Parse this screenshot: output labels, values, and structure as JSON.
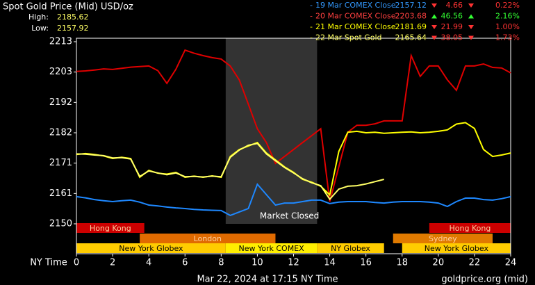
{
  "chart_data": {
    "type": "line",
    "title": "Spot Gold Price (Mid) USD/oz",
    "high_label": "High:",
    "high": "2185.62",
    "low_label": "Low:",
    "low": "2157.92",
    "x_label": "NY Time",
    "timestamp": "Mar 22, 2024 at 17:15 NY Time",
    "source": "goldprice.org (mid)",
    "closed_label": "Market Closed",
    "closed_range": [
      8.25,
      13.3
    ],
    "x": [
      0,
      0.5,
      1,
      1.5,
      2,
      2.5,
      3,
      3.5,
      4,
      4.5,
      5,
      5.5,
      6,
      6.5,
      7,
      7.5,
      8,
      8.5,
      9,
      9.5,
      10,
      10.5,
      11,
      11.5,
      12,
      12.5,
      13,
      13.5,
      14,
      14.5,
      15,
      15.5,
      16,
      16.5,
      17,
      17.5,
      18,
      18.5,
      19,
      19.5,
      20,
      20.5,
      21,
      21.5,
      22,
      22.5,
      23,
      23.5,
      24
    ],
    "xlim": [
      0,
      24
    ],
    "xticks": [
      0,
      2,
      4,
      6,
      8,
      10,
      12,
      14,
      16,
      18,
      20,
      22,
      24
    ],
    "ylim": [
      2150,
      2214.2
    ],
    "yticks": [
      2150,
      {
        "value": 2160.5,
        "label": "2161"
      },
      2171,
      {
        "value": 2181.5,
        "label": "2182"
      },
      2192,
      {
        "value": 2202.5,
        "label": "2203"
      },
      2213
    ],
    "series": [
      {
        "name": "19 Mar COMEX Close",
        "color": "#1e88ff",
        "last": "2157.12",
        "change": "4.66",
        "pct": "0.22%",
        "trend": "down",
        "values": [
          2159.4,
          2159.0,
          2158.4,
          2158.0,
          2157.7,
          2158.0,
          2158.2,
          2157.5,
          2156.5,
          2156.2,
          2155.8,
          2155.5,
          2155.3,
          2155.0,
          2154.8,
          2154.7,
          2154.6,
          2152.9,
          2154.1,
          2155.3,
          2163.7,
          2160.1,
          2156.5,
          2157.2,
          2157.2,
          2157.7,
          2158.2,
          2158.2,
          2157.0,
          2157.5,
          2157.7,
          2157.7,
          2157.7,
          2157.4,
          2157.2,
          2157.5,
          2157.7,
          2157.7,
          2157.7,
          2157.5,
          2157.2,
          2156.0,
          2157.7,
          2158.9,
          2158.9,
          2158.4,
          2158.2,
          2158.7,
          2159.4
        ]
      },
      {
        "name": "20 Mar COMEX Close",
        "color": "#e00000",
        "last": "2203.68",
        "change": "46.56",
        "pct": "2.16%",
        "trend": "up",
        "values": [
          2202.7,
          2202.9,
          2203.2,
          2203.6,
          2203.4,
          2203.8,
          2204.2,
          2204.4,
          2204.6,
          2203.0,
          2198.6,
          2203.5,
          2210.1,
          2209.0,
          2208.2,
          2207.5,
          2207.0,
          2204.6,
          2199.8,
          2191.4,
          2182.9,
          2178.1,
          2170.9,
          2173.3,
          2175.7,
          2178.1,
          2180.5,
          2182.9,
          2157.7,
          2169.7,
          2181.7,
          2184.1,
          2184.1,
          2184.6,
          2185.6,
          2185.6,
          2185.6,
          2208.2,
          2201.0,
          2204.6,
          2204.6,
          2199.8,
          2196.2,
          2204.6,
          2204.6,
          2205.3,
          2204.1,
          2203.9,
          2202.2
        ]
      },
      {
        "name": "21 Mar COMEX Close",
        "color": "#ffff00",
        "last": "2181.69",
        "change": "21.99",
        "pct": "1.00%",
        "trend": "down",
        "values": [
          2174.0,
          2174.3,
          2174.0,
          2173.5,
          2172.6,
          2173.0,
          2172.6,
          2166.1,
          2168.5,
          2167.5,
          2167.2,
          2167.8,
          2166.1,
          2166.5,
          2166.1,
          2166.6,
          2166.1,
          2173.3,
          2175.7,
          2176.9,
          2178.1,
          2174.5,
          2172.1,
          2169.7,
          2167.8,
          2165.4,
          2164.4,
          2163.0,
          2160.0,
          2175.0,
          2181.7,
          2182.0,
          2181.5,
          2181.7,
          2181.3,
          2181.5,
          2181.7,
          2181.8,
          2181.5,
          2181.7,
          2182.0,
          2182.5,
          2184.5,
          2185.0,
          2183.0,
          2175.7,
          2173.3,
          2173.8,
          2174.5
        ]
      },
      {
        "name": "22 Mar Spot Gold",
        "color": "#ffff66",
        "last": "2165.64",
        "change": "38.05",
        "pct": "1.73%",
        "trend": "down",
        "values": [
          2174.2,
          2174.1,
          2173.8,
          2173.6,
          2172.8,
          2172.9,
          2172.4,
          2166.4,
          2168.3,
          2167.6,
          2167.0,
          2167.6,
          2166.3,
          2166.4,
          2166.2,
          2166.5,
          2166.3,
          2173.0,
          2175.5,
          2177.2,
          2177.8,
          2174.2,
          2171.8,
          2169.5,
          2167.6,
          2165.6,
          2164.2,
          2163.2,
          2158.5,
          2162.0,
          2163.0,
          2163.2,
          2163.8,
          2164.6,
          2165.4,
          null,
          null,
          null,
          null,
          null,
          null,
          null,
          null,
          null,
          null,
          null,
          null,
          null,
          null
        ]
      }
    ],
    "sessions": [
      {
        "name": "Hong Kong",
        "start": 0,
        "end": 3.75,
        "row": 0,
        "color": "#cc0000"
      },
      {
        "name": "Hong Kong",
        "start": 19.5,
        "end": 24,
        "row": 0,
        "color": "#cc0000"
      },
      {
        "name": "London",
        "start": 3.5,
        "end": 11,
        "row": 1,
        "color": "#e06a00"
      },
      {
        "name": "Sydney",
        "start": 17.5,
        "end": 23,
        "row": 1,
        "color": "#e07a00"
      },
      {
        "name": "New York Globex",
        "start": 0,
        "end": 8.25,
        "row": 2,
        "color": "#ffcc00"
      },
      {
        "name": "New York COMEX",
        "start": 8.25,
        "end": 13.3,
        "row": 2,
        "color": "#ffee00"
      },
      {
        "name": "NY Globex",
        "start": 13.3,
        "end": 17,
        "row": 2,
        "color": "#ffcc00"
      },
      {
        "name": "New York Globex",
        "start": 18,
        "end": 24,
        "row": 2,
        "color": "#ffcc00"
      }
    ]
  }
}
